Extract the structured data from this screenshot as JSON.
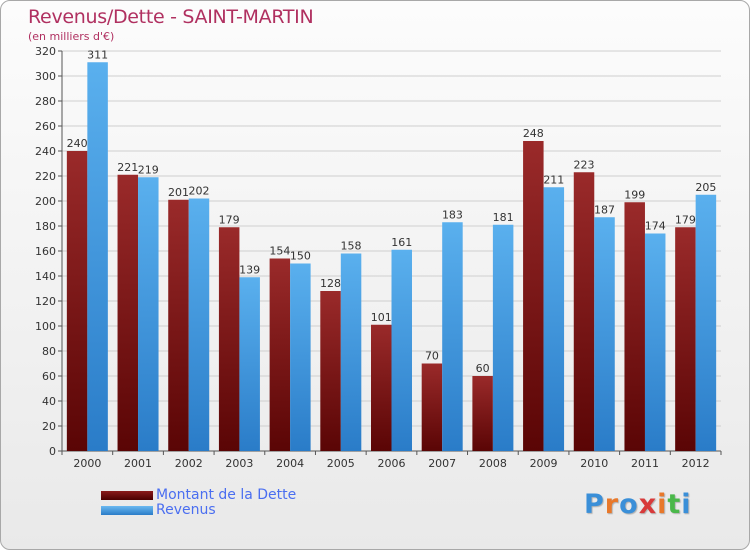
{
  "chart_data": {
    "type": "bar",
    "title": "Revenus/Dette - SAINT-MARTIN",
    "subtitle": "(en milliers d'€)",
    "categories": [
      "2000",
      "2001",
      "2002",
      "2003",
      "2004",
      "2005",
      "2006",
      "2007",
      "2008",
      "2009",
      "2010",
      "2011",
      "2012"
    ],
    "series": [
      {
        "name": "Montant de la Dette",
        "color": "#7a1010",
        "values": [
          240,
          221,
          201,
          179,
          154,
          128,
          101,
          70,
          60,
          248,
          223,
          199,
          179
        ]
      },
      {
        "name": "Revenus",
        "color": "#4aa0e8",
        "values": [
          311,
          219,
          202,
          139,
          150,
          158,
          161,
          183,
          181,
          211,
          187,
          174,
          205
        ]
      }
    ],
    "ylim": [
      0,
      320
    ],
    "yticks": [
      0,
      20,
      40,
      60,
      80,
      100,
      120,
      140,
      160,
      180,
      200,
      220,
      240,
      260,
      280,
      300,
      320
    ],
    "grid": true,
    "legend_position": "bottom-left"
  },
  "logo": {
    "letters": [
      {
        "ch": "P",
        "color": "#3a8fd8"
      },
      {
        "ch": "r",
        "color": "#e8782a"
      },
      {
        "ch": "o",
        "color": "#3a8fd8"
      },
      {
        "ch": "x",
        "color": "#d83a3a"
      },
      {
        "ch": "i",
        "color": "#e8782a"
      },
      {
        "ch": "t",
        "color": "#4ab84a"
      },
      {
        "ch": "i",
        "color": "#3a8fd8"
      }
    ]
  }
}
